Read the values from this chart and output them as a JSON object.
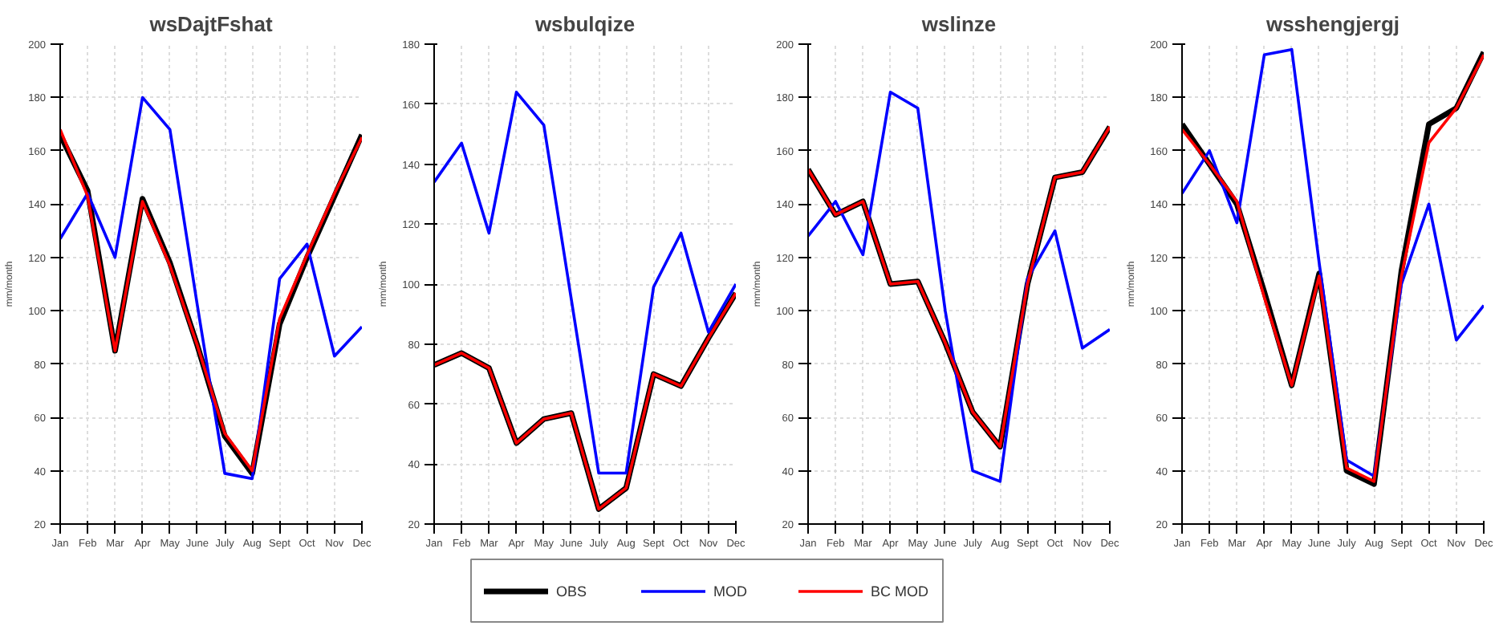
{
  "chart_data": [
    {
      "type": "line",
      "title": "wsDajtFshat",
      "ylabel": "mm/month",
      "categories": [
        "Jan",
        "Feb",
        "Mar",
        "Apr",
        "May",
        "June",
        "July",
        "Aug",
        "Sept",
        "Oct",
        "Nov",
        "Dec"
      ],
      "ylim": [
        20,
        200
      ],
      "yticks": [
        20,
        40,
        60,
        80,
        100,
        120,
        140,
        160,
        180,
        200
      ],
      "grid": true,
      "legend": "bottom",
      "line_style": "solid",
      "marker": "none",
      "series": [
        {
          "name": "OBS",
          "color": "#000000",
          "values": [
            166,
            145,
            85,
            142,
            118,
            87,
            53,
            39,
            95,
            120,
            143,
            166
          ]
        },
        {
          "name": "MOD",
          "color": "#0000ff",
          "values": [
            127,
            144,
            120,
            180,
            168,
            102,
            39,
            37,
            112,
            125,
            83,
            94
          ]
        },
        {
          "name": "BC MOD",
          "color": "#ff0000",
          "values": [
            168,
            143,
            85,
            141,
            117,
            87,
            54,
            40,
            97,
            121,
            144,
            165
          ]
        }
      ]
    },
    {
      "type": "line",
      "title": "wsbulqize",
      "ylabel": "mm/month",
      "categories": [
        "Jan",
        "Feb",
        "Mar",
        "Apr",
        "May",
        "June",
        "July",
        "Aug",
        "Sept",
        "Oct",
        "Nov",
        "Dec"
      ],
      "ylim": [
        20,
        180
      ],
      "yticks": [
        20,
        40,
        60,
        80,
        100,
        120,
        140,
        160,
        180
      ],
      "grid": true,
      "line_style": "solid",
      "marker": "none",
      "series": [
        {
          "color": "#000000",
          "values": [
            73,
            77,
            72,
            47,
            55,
            57,
            25,
            32,
            70,
            66,
            82,
            97
          ]
        },
        {
          "color": "#0000ff",
          "values": [
            134,
            147,
            117,
            164,
            153,
            95,
            37,
            37,
            99,
            117,
            84,
            100
          ]
        },
        {
          "color": "#ff0000",
          "values": [
            73,
            77,
            72,
            47,
            55,
            57,
            25,
            32,
            70,
            66,
            82,
            97
          ]
        }
      ]
    },
    {
      "type": "line",
      "title": "wslinze",
      "ylabel": "mm/month",
      "categories": [
        "Jan",
        "Feb",
        "Mar",
        "Apr",
        "May",
        "June",
        "July",
        "Aug",
        "Sept",
        "Oct",
        "Nov",
        "Dec"
      ],
      "ylim": [
        20,
        200
      ],
      "yticks": [
        20,
        40,
        60,
        80,
        100,
        120,
        140,
        160,
        180,
        200
      ],
      "grid": true,
      "line_style": "solid",
      "marker": "none",
      "series": [
        {
          "color": "#000000",
          "values": [
            153,
            136,
            141,
            110,
            111,
            88,
            62,
            49,
            110,
            150,
            152,
            169
          ]
        },
        {
          "color": "#0000ff",
          "values": [
            128,
            141,
            121,
            182,
            176,
            100,
            40,
            36,
            112,
            130,
            86,
            93
          ]
        },
        {
          "color": "#ff0000",
          "values": [
            153,
            136,
            141,
            110,
            111,
            88,
            62,
            49,
            110,
            150,
            152,
            169
          ]
        }
      ]
    },
    {
      "type": "line",
      "title": "wsshengjergj",
      "ylabel": "mm/month",
      "categories": [
        "Jan",
        "Feb",
        "Mar",
        "Apr",
        "May",
        "June",
        "July",
        "Aug",
        "Sept",
        "Oct",
        "Nov",
        "Dec"
      ],
      "ylim": [
        20,
        200
      ],
      "yticks": [
        20,
        40,
        60,
        80,
        100,
        120,
        140,
        160,
        180,
        200
      ],
      "grid": true,
      "line_style": "solid",
      "marker": "none",
      "series": [
        {
          "color": "#000000",
          "values": [
            170,
            155,
            140,
            107,
            72,
            114,
            40,
            35,
            115,
            170,
            176,
            197
          ]
        },
        {
          "color": "#0000ff",
          "values": [
            144,
            160,
            133,
            196,
            198,
            118,
            44,
            38,
            110,
            140,
            89,
            102
          ]
        },
        {
          "color": "#ff0000",
          "values": [
            168,
            155,
            141,
            105,
            72,
            113,
            41,
            36,
            113,
            163,
            176,
            196
          ]
        }
      ]
    }
  ]
}
